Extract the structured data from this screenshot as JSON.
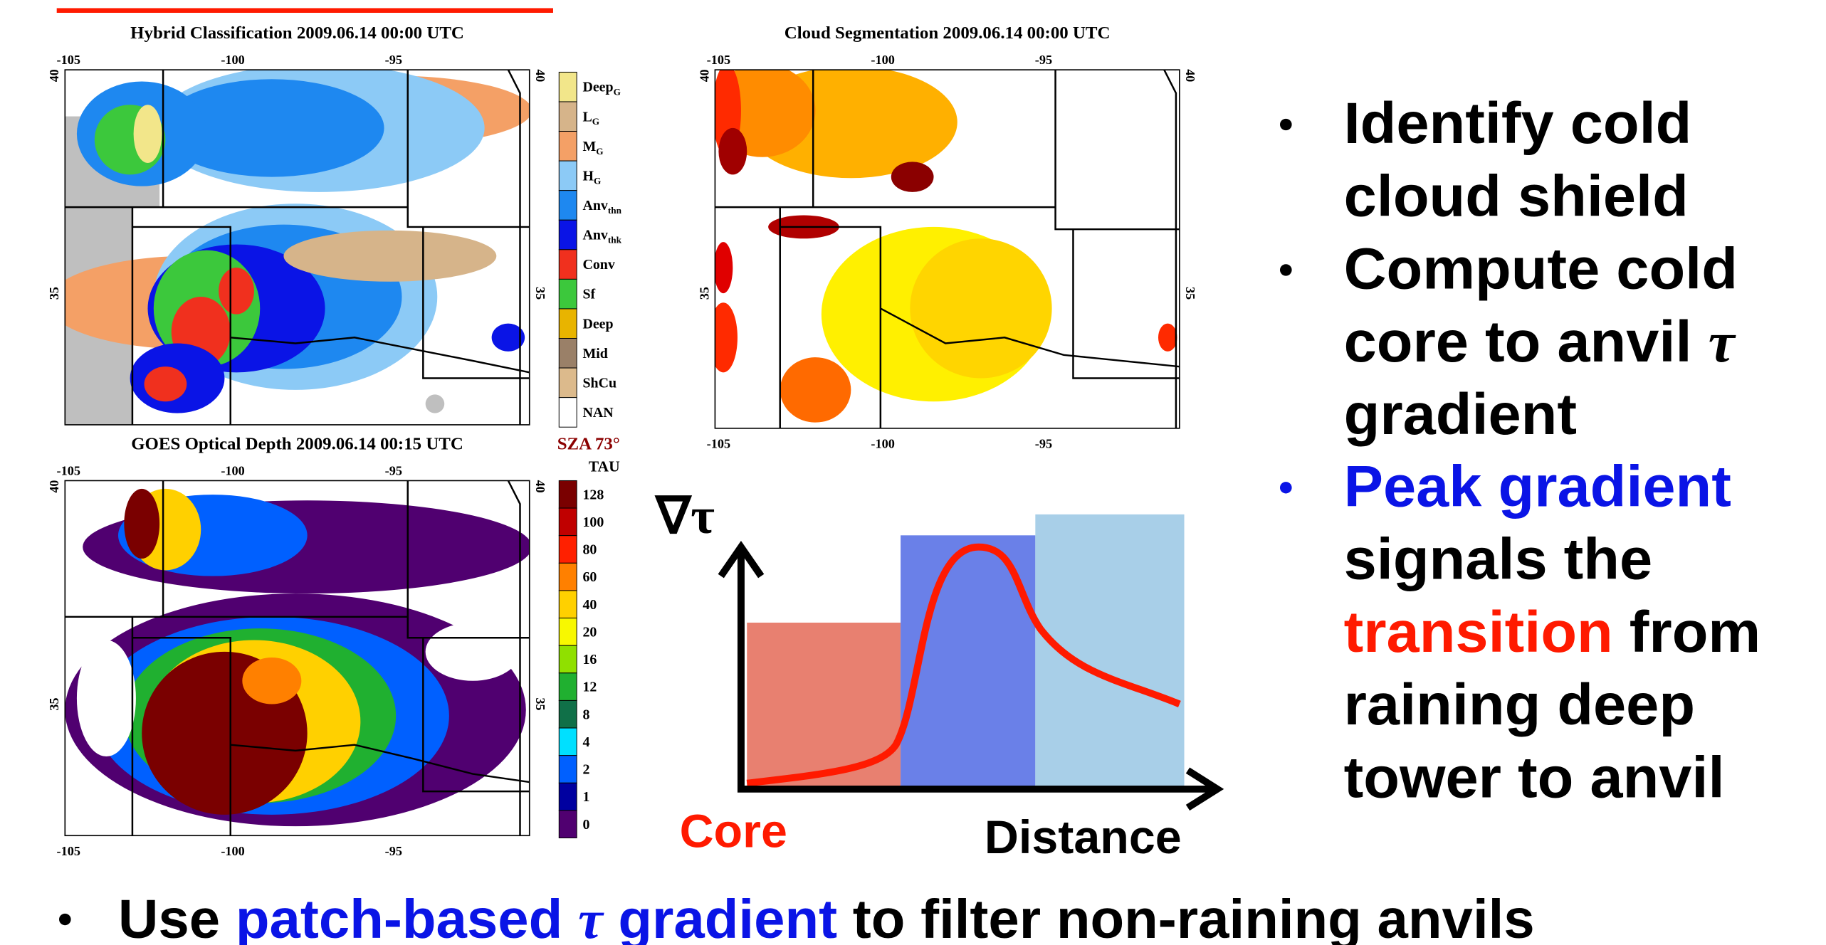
{
  "panels": [
    {
      "title": "Hybrid Classification  2009.06.14  00:00 UTC",
      "x_ticks_top": [
        "-105",
        "-100",
        "-95"
      ],
      "y_ticks_left": [
        "40",
        "35"
      ],
      "y_ticks_right": [
        "40",
        "35"
      ]
    },
    {
      "title": "Cloud Segmentation  2009.06.14  00:00 UTC",
      "x_ticks_top": [
        "-105",
        "-100",
        "-95"
      ],
      "x_ticks_bottom": [
        "-105",
        "-100",
        "-95"
      ],
      "y_ticks_left": [
        "40",
        "35"
      ],
      "y_ticks_right": [
        "40",
        "35"
      ]
    },
    {
      "title": "GOES Optical Depth  2009.06.14  00:15 UTC",
      "note": "SZA 73°",
      "x_ticks_top": [
        "-105",
        "-100",
        "-95"
      ],
      "x_ticks_bottom": [
        "-105",
        "-100",
        "-95"
      ],
      "y_ticks_left": [
        "40",
        "35"
      ],
      "y_ticks_right": [
        "40",
        "35"
      ]
    }
  ],
  "legends": [
    {
      "entries": [
        {
          "label": "Deep",
          "sub": "G",
          "color": "#f2e68a"
        },
        {
          "label": "L",
          "sub": "G",
          "color": "#d6b48a"
        },
        {
          "label": "M",
          "sub": "G",
          "color": "#f4a066"
        },
        {
          "label": "H",
          "sub": "G",
          "color": "#8ccaf6"
        },
        {
          "label": "Anv",
          "sub": "thn",
          "color": "#1e88f0"
        },
        {
          "label": "Anv",
          "sub": "thk",
          "color": "#0a14e6"
        },
        {
          "label": "Conv",
          "color": "#f0301e"
        },
        {
          "label": "Sf",
          "color": "#3cc83c"
        },
        {
          "label": "Deep",
          "color": "#e8b400"
        },
        {
          "label": "Mid",
          "color": "#9a8068"
        },
        {
          "label": "ShCu",
          "color": "#dcba8c"
        },
        {
          "label": "NAN",
          "color": "#ffffff"
        }
      ]
    },
    {
      "title": "TAU",
      "entries": [
        {
          "label": "128",
          "color": "#7a0000"
        },
        {
          "label": "100",
          "color": "#c00000"
        },
        {
          "label": "80",
          "color": "#ff2000"
        },
        {
          "label": "60",
          "color": "#ff8000"
        },
        {
          "label": "40",
          "color": "#ffd000"
        },
        {
          "label": "20",
          "color": "#f8f800"
        },
        {
          "label": "16",
          "color": "#90e000"
        },
        {
          "label": "12",
          "color": "#20b030"
        },
        {
          "label": "8",
          "color": "#107048"
        },
        {
          "label": "4",
          "color": "#00e0ff"
        },
        {
          "label": "2",
          "color": "#0060ff"
        },
        {
          "label": "1",
          "color": "#0000a0"
        },
        {
          "label": "0",
          "color": "#500070"
        }
      ]
    }
  ],
  "diagram": {
    "y_label": "∇τ",
    "x_start_label": "Core",
    "x_end_label": "Distance"
  },
  "bullets": [
    {
      "lines": [
        [
          {
            "text": "Identify cold"
          }
        ],
        [
          {
            "text": "cloud shield"
          }
        ]
      ]
    },
    {
      "lines": [
        [
          {
            "text": "Compute cold"
          }
        ],
        [
          {
            "text": "core to anvil "
          },
          {
            "text": "τ",
            "italic": true
          }
        ],
        [
          {
            "text": "gradient"
          }
        ]
      ]
    },
    {
      "color": "#0a14e6",
      "lines": [
        [
          {
            "text": "Peak gradient",
            "color": "#0a14e6"
          }
        ],
        [
          {
            "text": "signals the"
          }
        ],
        [
          {
            "text": "transition",
            "color": "#ff1a00"
          },
          {
            "text": " from"
          }
        ],
        [
          {
            "text": "raining deep"
          }
        ],
        [
          {
            "text": "tower to anvil"
          }
        ]
      ]
    }
  ],
  "footer": {
    "segments": [
      {
        "text": "Use "
      },
      {
        "text": "patch-based ",
        "color": "#0a14e6"
      },
      {
        "text": "τ",
        "italic": true,
        "color": "#0a14e6"
      },
      {
        "text": " gradient",
        "color": "#0a14e6"
      },
      {
        "text": " to filter non-raining anvils"
      }
    ]
  }
}
